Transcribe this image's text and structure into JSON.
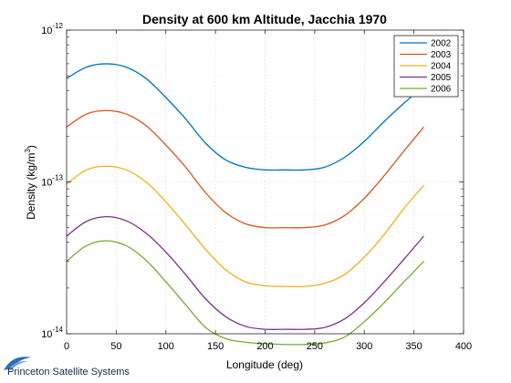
{
  "chart_data": {
    "type": "line",
    "title": "Density at 600 km Altitude, Jacchia 1970",
    "xlabel": "Longitude (deg)",
    "ylabel_main": "Density (kg/m",
    "ylabel_sup": "3",
    "ylabel_close": ")",
    "xlim": [
      0,
      400
    ],
    "ylim": [
      1e-14,
      1e-12
    ],
    "yscale": "log",
    "xticks": [
      0,
      50,
      100,
      150,
      200,
      250,
      300,
      350,
      400
    ],
    "xtick_labels": [
      "0",
      "50",
      "100",
      "150",
      "200",
      "250",
      "300",
      "350",
      "400"
    ],
    "yticks": [
      {
        "value": 1e-12,
        "base": "10",
        "exp": "-12"
      },
      {
        "value": 1e-13,
        "base": "10",
        "exp": "-13"
      },
      {
        "value": 1e-14,
        "base": "10",
        "exp": "-14"
      }
    ],
    "grid": true,
    "legend_position": "top-right",
    "x": [
      0,
      20,
      40,
      60,
      80,
      100,
      120,
      140,
      160,
      180,
      200,
      220,
      240,
      260,
      280,
      300,
      320,
      340,
      360
    ],
    "series": [
      {
        "name": "2002",
        "color": "#0072BD",
        "values": [
          4.8e-13,
          5.7e-13,
          6e-13,
          5.7e-13,
          4.8e-13,
          3.6e-13,
          2.6e-13,
          1.8e-13,
          1.4e-13,
          1.25e-13,
          1.2e-13,
          1.2e-13,
          1.2e-13,
          1.25e-13,
          1.45e-13,
          1.85e-13,
          2.5e-13,
          3.3e-13,
          4.3e-13
        ]
      },
      {
        "name": "2003",
        "color": "#D95319",
        "values": [
          2.3e-13,
          2.8e-13,
          2.95e-13,
          2.8e-13,
          2.35e-13,
          1.75e-13,
          1.25e-13,
          8.5e-14,
          6.3e-14,
          5.3e-14,
          5e-14,
          5e-14,
          5e-14,
          5.2e-14,
          6e-14,
          7.8e-14,
          1.1e-13,
          1.6e-13,
          2.3e-13
        ]
      },
      {
        "name": "2004",
        "color": "#EDB120",
        "values": [
          9.7e-14,
          1.2e-13,
          1.27e-13,
          1.2e-13,
          1e-13,
          7.4e-14,
          5.2e-14,
          3.6e-14,
          2.65e-14,
          2.2e-14,
          2.07e-14,
          2.05e-14,
          2.05e-14,
          2.15e-14,
          2.45e-14,
          3.2e-14,
          4.5e-14,
          6.7e-14,
          9.5e-14
        ]
      },
      {
        "name": "2005",
        "color": "#7E2F8E",
        "values": [
          4.4e-14,
          5.5e-14,
          5.9e-14,
          5.55e-14,
          4.6e-14,
          3.45e-14,
          2.45e-14,
          1.7e-14,
          1.3e-14,
          1.12e-14,
          1.07e-14,
          1.07e-14,
          1.07e-14,
          1.1e-14,
          1.25e-14,
          1.6e-14,
          2.2e-14,
          3.1e-14,
          4.4e-14
        ]
      },
      {
        "name": "2006",
        "color": "#77AC30",
        "values": [
          3e-14,
          3.8e-14,
          4.1e-14,
          3.8e-14,
          3.05e-14,
          2.2e-14,
          1.55e-14,
          1.1e-14,
          9.3e-15,
          8.8e-15,
          8.6e-15,
          8.5e-15,
          8.5e-15,
          8.7e-15,
          9.5e-15,
          1.2e-14,
          1.6e-14,
          2.2e-14,
          3e-14
        ]
      }
    ]
  },
  "company": {
    "name": "Princeton Satellite Systems",
    "logo_color": "#2a6db5"
  }
}
